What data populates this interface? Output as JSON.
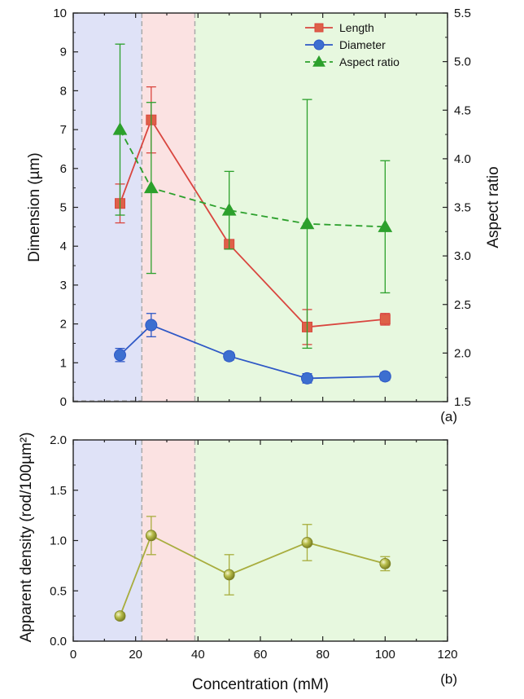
{
  "colors": {
    "region_blue": "#dfe2f7",
    "region_pink": "#fbe2e2",
    "region_green": "#e7f8df",
    "region_divider": "#aaaaaa",
    "length": "#d9463f",
    "length_marker": "#de6048",
    "diameter": "#2e58c6",
    "diameter_marker": "#3d6fd0",
    "aspect": "#2ca02c",
    "density": "#a8ad3e"
  },
  "chart_data": [
    {
      "panel_label": "(a)",
      "type": "line",
      "regions": [
        {
          "from": 0,
          "to": 22,
          "color": "blue"
        },
        {
          "from": 22,
          "to": 39,
          "color": "pink"
        },
        {
          "from": 39,
          "to": 120,
          "color": "green"
        }
      ],
      "xlim": [
        0,
        120
      ],
      "ylim": [
        0,
        10
      ],
      "y2lim": [
        1.5,
        5.5
      ],
      "ylabel": "Dimension (µm)",
      "y2label": "Aspect ratio",
      "yticks": [
        "0",
        "1",
        "2",
        "3",
        "4",
        "5",
        "6",
        "7",
        "8",
        "9",
        "10"
      ],
      "y2ticks": [
        "1.5",
        "2.0",
        "2.5",
        "3.0",
        "3.5",
        "4.0",
        "4.5",
        "5.0",
        "5.5"
      ],
      "legend": {
        "position": "top-right",
        "entries": [
          "Length",
          "Diameter",
          "Aspect ratio"
        ]
      },
      "series": [
        {
          "name": "Length",
          "axis": "left",
          "marker": "square",
          "line": "solid",
          "x": [
            15,
            25,
            50,
            75,
            100
          ],
          "y": [
            5.1,
            7.25,
            4.05,
            1.92,
            2.12
          ],
          "err": [
            0.5,
            0.85,
            0.1,
            0.45,
            0.15
          ]
        },
        {
          "name": "Diameter",
          "axis": "left",
          "marker": "circle",
          "line": "solid",
          "x": [
            15,
            25,
            50,
            75,
            100
          ],
          "y": [
            1.2,
            1.97,
            1.17,
            0.6,
            0.65
          ],
          "err": [
            0.17,
            0.3,
            0.1,
            0.12,
            0.1
          ]
        },
        {
          "name": "Aspect ratio",
          "axis": "right",
          "marker": "triangle",
          "line": "dashed",
          "x": [
            15,
            25,
            50,
            75,
            100
          ],
          "y": [
            4.3,
            3.7,
            3.47,
            3.33,
            3.3
          ],
          "err": [
            0.88,
            0.88,
            0.4,
            1.28,
            0.68
          ]
        }
      ]
    },
    {
      "panel_label": "(b)",
      "type": "line",
      "regions": [
        {
          "from": 0,
          "to": 22,
          "color": "blue"
        },
        {
          "from": 22,
          "to": 39,
          "color": "pink"
        },
        {
          "from": 39,
          "to": 120,
          "color": "green"
        }
      ],
      "xlim": [
        0,
        120
      ],
      "ylim": [
        0,
        2.0
      ],
      "xlabel": "Concentration (mM)",
      "ylabel": "Apparent density (rod/100µm²)",
      "xticks": [
        "0",
        "20",
        "40",
        "60",
        "80",
        "100",
        "120"
      ],
      "yticks": [
        "0.0",
        "0.5",
        "1.0",
        "1.5",
        "2.0"
      ],
      "series": [
        {
          "marker": "sphere",
          "line": "solid",
          "x": [
            15,
            25,
            50,
            75,
            100
          ],
          "y": [
            0.25,
            1.05,
            0.66,
            0.98,
            0.77
          ],
          "err": [
            0.03,
            0.19,
            0.2,
            0.18,
            0.07
          ]
        }
      ]
    }
  ]
}
